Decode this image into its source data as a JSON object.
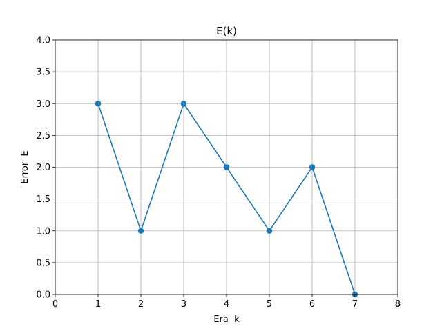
{
  "chart_data": {
    "type": "line",
    "title": "E(k)",
    "xlabel": "Era  k",
    "ylabel": "Error  E",
    "x": [
      1,
      2,
      3,
      4,
      5,
      6,
      7
    ],
    "series": [
      {
        "values": [
          3.0,
          1.0,
          3.0,
          2.0,
          1.0,
          2.0,
          0.0
        ],
        "color": "#1f77b4",
        "marker": "circle"
      }
    ],
    "xlim": [
      0,
      8
    ],
    "ylim": [
      0.0,
      4.0
    ],
    "xticks": [
      "0",
      "1",
      "2",
      "3",
      "4",
      "5",
      "6",
      "7",
      "8"
    ],
    "yticks": [
      "0.0",
      "0.5",
      "1.0",
      "1.5",
      "2.0",
      "2.5",
      "3.0",
      "3.5",
      "4.0"
    ],
    "grid": true,
    "colors": {
      "grid": "#b0b0b0",
      "axis": "#000000"
    }
  }
}
